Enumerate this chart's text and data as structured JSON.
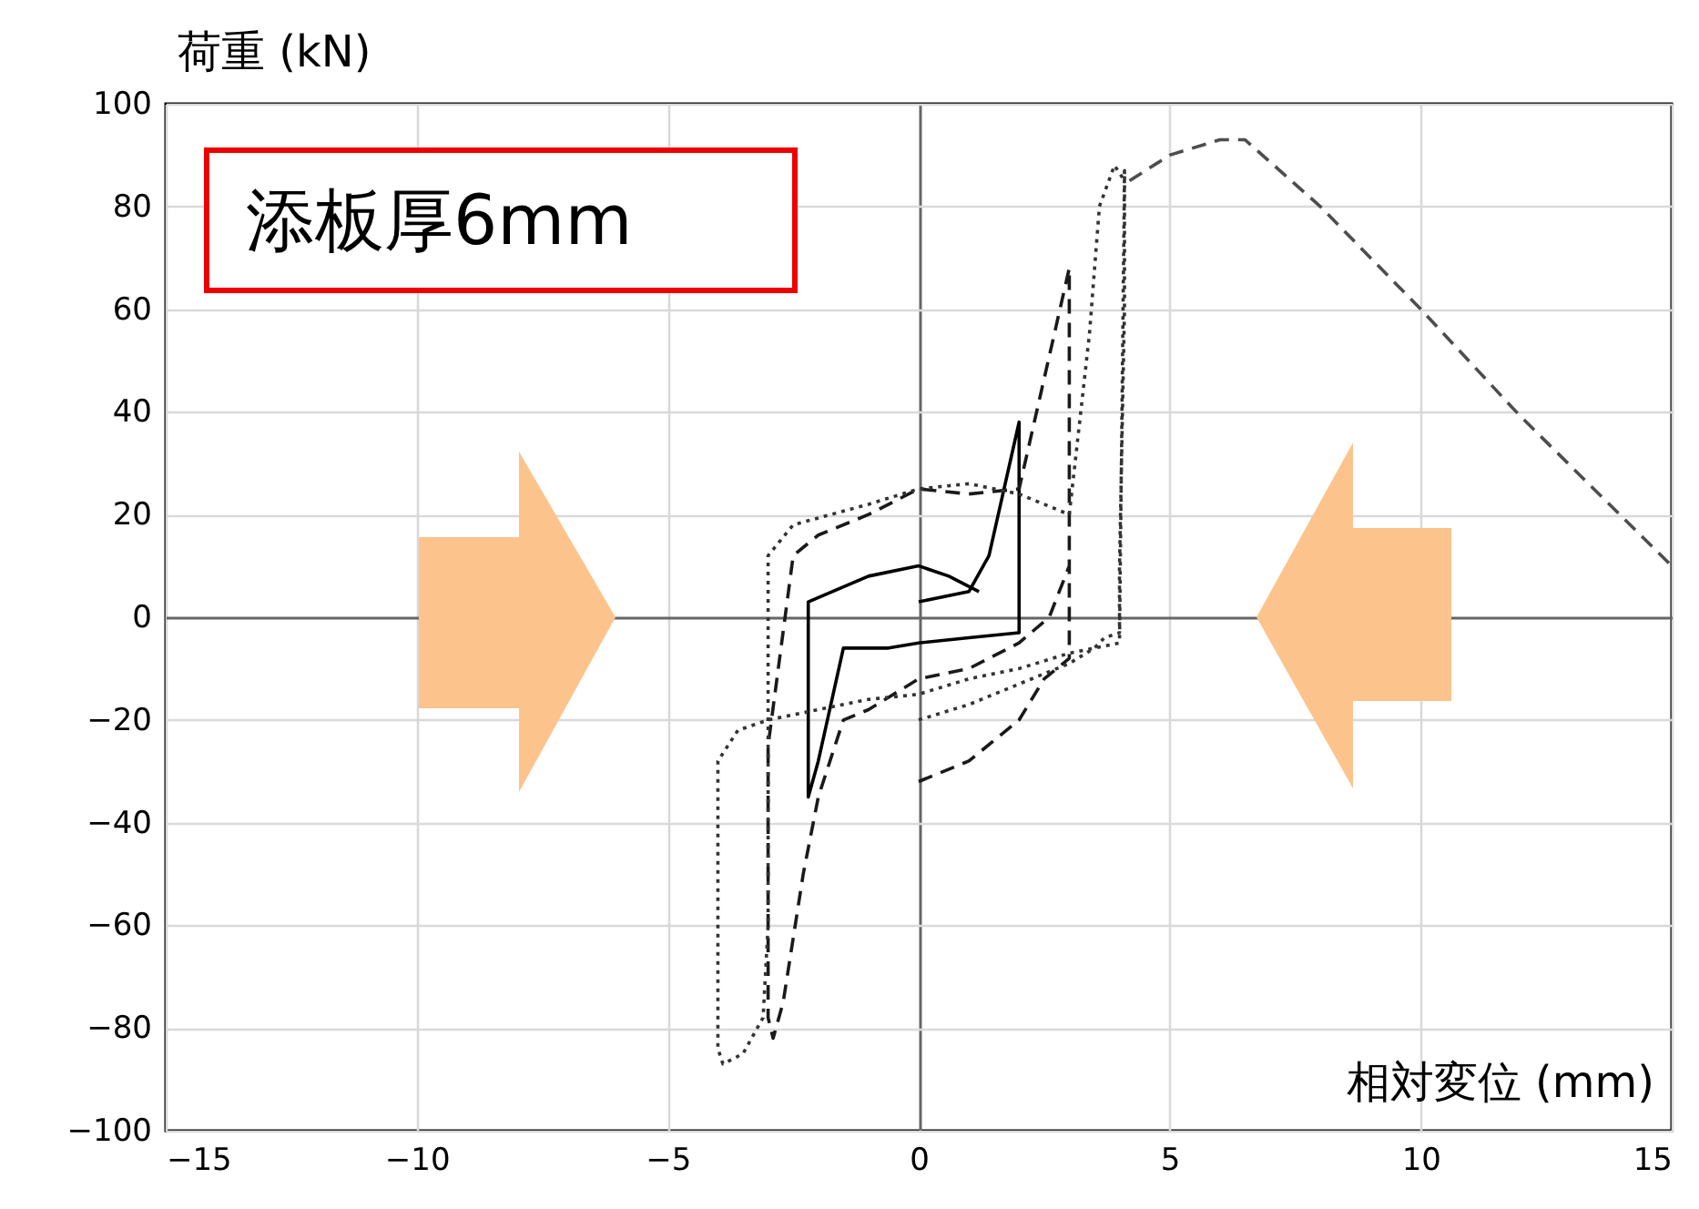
{
  "chart_data": {
    "type": "line",
    "xlabel": "相対変位 (mm)",
    "ylabel": "荷重 (kN)",
    "annotations": [
      "添板厚6mm"
    ],
    "xlim": [
      -15,
      15
    ],
    "xticks": [
      {
        "value": -15,
        "label": "−15"
      },
      {
        "value": -10,
        "label": "−10"
      },
      {
        "value": -5,
        "label": "−5"
      },
      0,
      5,
      10,
      15
    ],
    "ylim": [
      -100,
      100
    ],
    "yticks": [
      {
        "value": -100,
        "label": "−100"
      },
      {
        "value": -80,
        "label": "−80"
      },
      {
        "value": -60,
        "label": "−60"
      },
      {
        "value": -40,
        "label": "−40"
      },
      {
        "value": -20,
        "label": "−20"
      },
      0,
      20,
      40,
      60,
      80,
      100
    ],
    "grid": true,
    "series": [
      {
        "color": "#000000",
        "line_style": "solid",
        "x": [
          0,
          1,
          1.4,
          2,
          2,
          1,
          0,
          -0.6,
          -1.5,
          -2,
          -2.2,
          -2.2,
          -1,
          0,
          0.6,
          1.2
        ],
        "values": [
          3,
          5,
          12,
          38,
          -3,
          -4,
          -5,
          -6,
          -6,
          -28,
          -35,
          3,
          8,
          10,
          8,
          5
        ]
      },
      {
        "color": "#1a1a1a",
        "line_style": "dashed",
        "x": [
          0,
          1,
          2,
          2.5,
          3,
          3,
          3,
          2,
          1,
          0,
          -1,
          -2,
          -2.5,
          -3,
          -3,
          -2.9,
          -2.7,
          -2.3,
          -2,
          -1.5,
          -1,
          0,
          1,
          2,
          2.6,
          3
        ],
        "values": [
          -32,
          -28,
          -20,
          -12,
          -8,
          40,
          68,
          25,
          24,
          25,
          20,
          16,
          12,
          -25,
          -78,
          -82,
          -75,
          -50,
          -35,
          -20,
          -18,
          -12,
          -10,
          -5,
          0,
          10
        ]
      },
      {
        "color": "#333333",
        "line_style": "dotted",
        "x": [
          0,
          1,
          2,
          3,
          3.5,
          3.7,
          4,
          4,
          4.1,
          4.1,
          4,
          3,
          2,
          1,
          0,
          -1,
          -2,
          -3,
          -3.6,
          -4,
          -4,
          -3.9,
          -3.5,
          -3.1,
          -3,
          -3,
          -2.5,
          -1,
          0,
          1,
          2,
          3,
          3.4,
          3.6,
          3.9,
          4.1
        ],
        "values": [
          -20,
          -17,
          -13,
          -9,
          -6,
          -4,
          -3,
          10,
          60,
          87,
          -5,
          -7,
          -10,
          -12,
          -15,
          -16,
          -18,
          -20,
          -22,
          -28,
          -84,
          -87,
          -85,
          -78,
          -60,
          12,
          18,
          22,
          25,
          26,
          24,
          20,
          55,
          80,
          88,
          85
        ]
      },
      {
        "color": "#4d4d4d",
        "line_style": "dashed",
        "x": [
          4.2,
          5,
          6,
          6.5,
          8,
          10,
          12,
          15
        ],
        "values": [
          85,
          90,
          93,
          93,
          80,
          60,
          39,
          10
        ]
      }
    ]
  }
}
